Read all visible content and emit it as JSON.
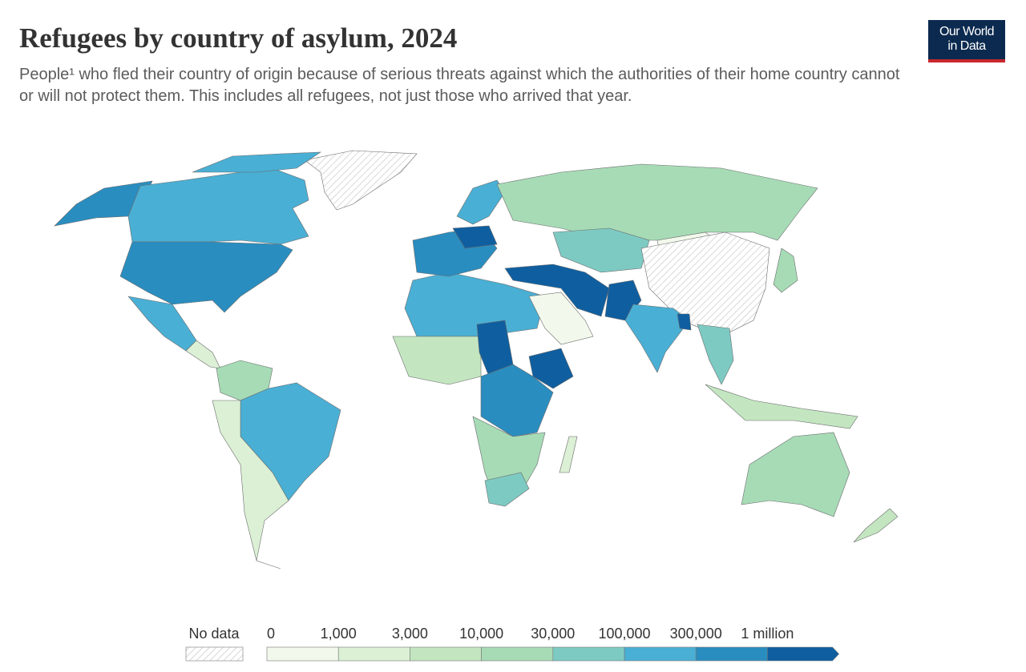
{
  "header": {
    "title": "Refugees by country of asylum, 2024",
    "subtitle": "People¹ who fled their country of origin because of serious threats against which the authorities of their home country cannot or will not protect them. This includes all refugees, not just those who arrived that year."
  },
  "logo": {
    "line1": "Our World",
    "line2": "in Data"
  },
  "legend": {
    "no_data": "No data",
    "labels": [
      "0",
      "1,000",
      "3,000",
      "10,000",
      "30,000",
      "100,000",
      "300,000",
      "1 million"
    ],
    "colors": [
      "#f2f9ec",
      "#dbf0d5",
      "#c3e6c1",
      "#a6dbb6",
      "#7dcac3",
      "#4aafd4",
      "#2a8dbf",
      "#0f5fa0"
    ]
  }
}
